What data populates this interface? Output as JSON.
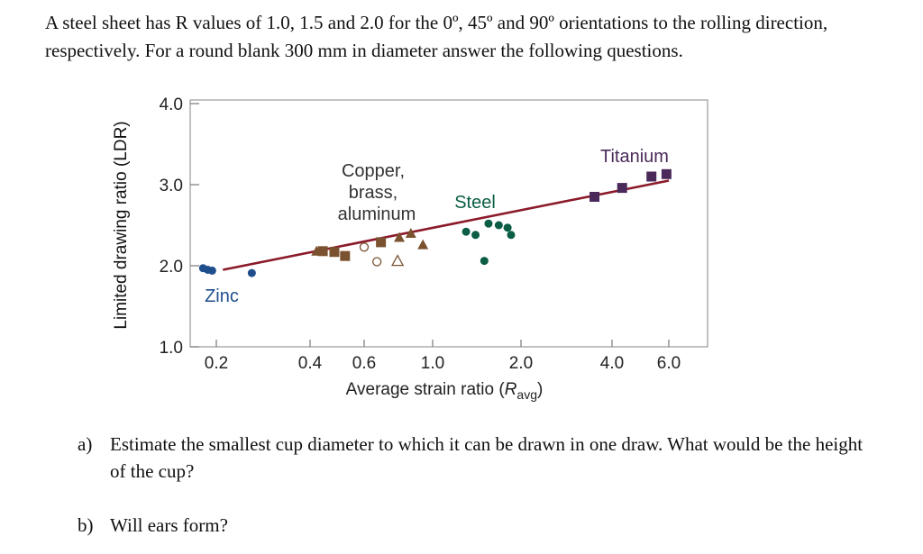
{
  "problem": {
    "statement": "A steel sheet has R values of 1.0, 1.5 and 2.0 for the 0º, 45º and 90º orientations to the rolling direction, respectively. For a round blank 300 mm in diameter answer the following questions."
  },
  "chart_data": {
    "type": "scatter",
    "xlabel": "Average strain ratio (Ravg)",
    "ylabel": "Limited drawing ratio (LDR)",
    "x_scale": "log",
    "xlim": [
      0.15,
      7.5
    ],
    "ylim": [
      1.0,
      4.0
    ],
    "x_ticks": [
      0.2,
      0.4,
      0.6,
      1.0,
      2.0,
      4.0,
      6.0
    ],
    "x_tick_labels": [
      "0.2",
      "0.4",
      "0.6",
      "1.0",
      "2.0",
      "4.0",
      "6.0"
    ],
    "y_ticks": [
      1.0,
      2.0,
      3.0,
      4.0
    ],
    "y_tick_labels": [
      "1.0",
      "2.0",
      "3.0",
      "4.0"
    ],
    "grid": false,
    "annotations": [
      {
        "text": "Zinc",
        "color": "#1f4e8c"
      },
      {
        "text": "Copper,",
        "color": "#333333"
      },
      {
        "text": "brass,",
        "color": "#333333"
      },
      {
        "text": "aluminum",
        "color": "#333333"
      },
      {
        "text": "Steel",
        "color": "#0b5e45"
      },
      {
        "text": "Titanium",
        "color": "#4a2a5a"
      }
    ],
    "trend_line": {
      "x": [
        0.21,
        6.0
      ],
      "y": [
        1.95,
        3.05
      ],
      "color": "#8b1a2a"
    },
    "series": [
      {
        "group": "zinc",
        "marker": "circle",
        "color": "#1f4e8c",
        "points": [
          {
            "x": 0.17,
            "y": 1.97
          },
          {
            "x": 0.18,
            "y": 1.95
          },
          {
            "x": 0.19,
            "y": 1.94
          },
          {
            "x": 0.26,
            "y": 1.91
          }
        ]
      },
      {
        "group": "copper-brass-aluminum",
        "marker": "square",
        "color": "#7a5230",
        "points": [
          {
            "x": 0.44,
            "y": 2.18
          },
          {
            "x": 0.48,
            "y": 2.17
          },
          {
            "x": 0.52,
            "y": 2.12
          },
          {
            "x": 0.68,
            "y": 2.29
          }
        ]
      },
      {
        "group": "copper-brass-aluminum",
        "marker": "triangle",
        "color": "#7a5230",
        "points": [
          {
            "x": 0.42,
            "y": 2.18
          },
          {
            "x": 0.78,
            "y": 2.35
          },
          {
            "x": 0.85,
            "y": 2.4
          },
          {
            "x": 0.93,
            "y": 2.26
          }
        ]
      },
      {
        "group": "copper-brass-aluminum-open",
        "marker": "circle-open",
        "color": "#7a5230",
        "points": [
          {
            "x": 0.6,
            "y": 2.23
          },
          {
            "x": 0.66,
            "y": 2.05
          }
        ]
      },
      {
        "group": "copper-brass-aluminum-open",
        "marker": "triangle-open",
        "color": "#7a5230",
        "points": [
          {
            "x": 0.77,
            "y": 2.06
          }
        ]
      },
      {
        "group": "steel",
        "marker": "circle",
        "color": "#0b5e45",
        "points": [
          {
            "x": 1.3,
            "y": 2.42
          },
          {
            "x": 1.4,
            "y": 2.38
          },
          {
            "x": 1.55,
            "y": 2.52
          },
          {
            "x": 1.68,
            "y": 2.5
          },
          {
            "x": 1.8,
            "y": 2.47
          },
          {
            "x": 1.85,
            "y": 2.38
          },
          {
            "x": 1.5,
            "y": 2.06
          }
        ]
      },
      {
        "group": "titanium",
        "marker": "square",
        "color": "#4a2a5a",
        "points": [
          {
            "x": 3.5,
            "y": 2.85
          },
          {
            "x": 4.3,
            "y": 2.96
          },
          {
            "x": 5.3,
            "y": 3.1
          },
          {
            "x": 5.9,
            "y": 3.13
          }
        ]
      }
    ]
  },
  "questions": {
    "a_label": "a)",
    "a_text": "Estimate the smallest cup diameter to which it can be drawn in one draw. What would be the height of the cup?",
    "b_label": "b)",
    "b_text": "Will ears form?"
  }
}
